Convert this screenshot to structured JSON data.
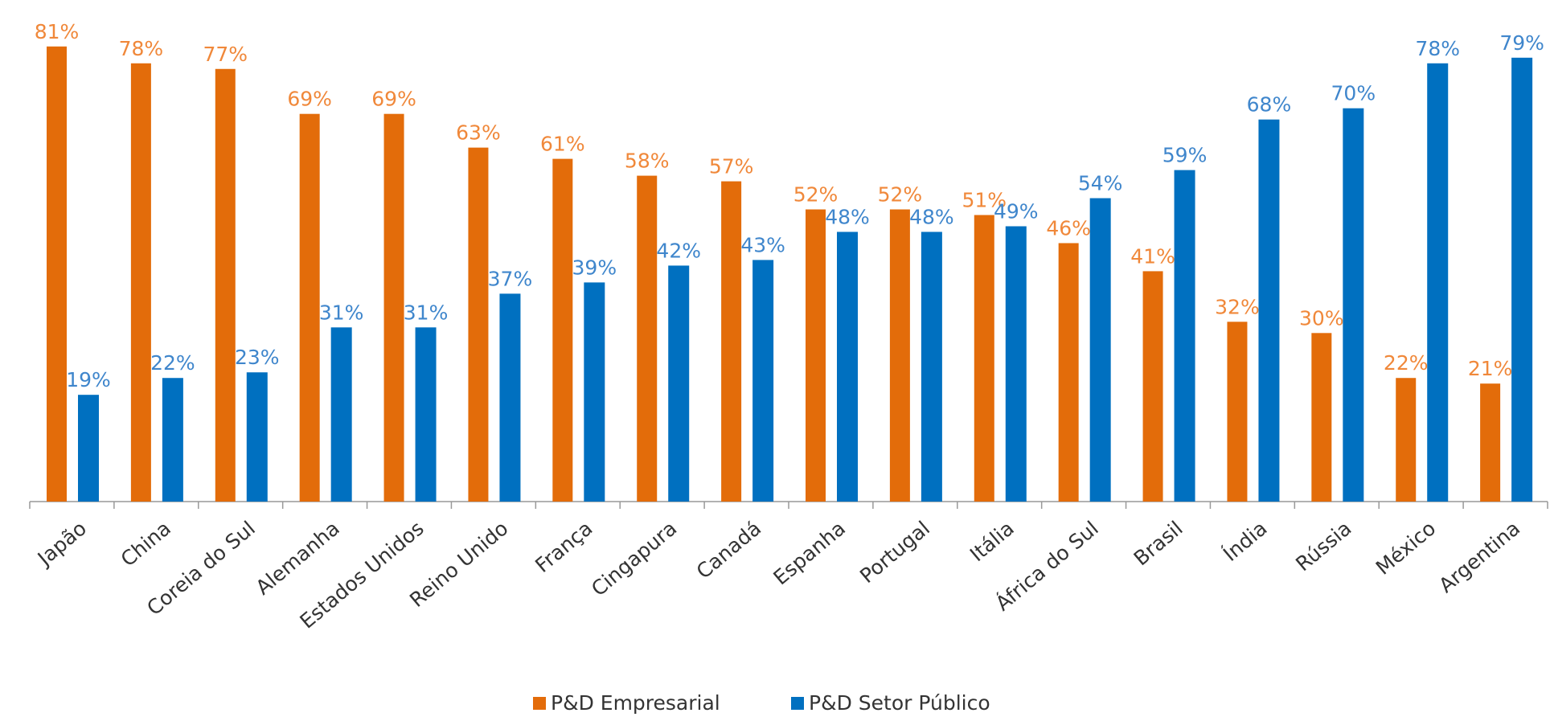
{
  "chart_data": {
    "type": "bar",
    "categories": [
      "Japão",
      "China",
      "Coreia do Sul",
      "Alemanha",
      "Estados Unidos",
      "Reino Unido",
      "França",
      "Cingapura",
      "Canadá",
      "Espanha",
      "Portugal",
      "Itália",
      "África do Sul",
      "Brasil",
      "Índia",
      "Rússia",
      "México",
      "Argentina"
    ],
    "series": [
      {
        "name": "P&D Empresarial",
        "color": "#e36c0a",
        "values": [
          81,
          78,
          77,
          69,
          69,
          63,
          61,
          58,
          57,
          52,
          52,
          51,
          46,
          41,
          32,
          30,
          22,
          21
        ],
        "value_labels": [
          "81%",
          "78%",
          "77%",
          "69%",
          "69%",
          "63%",
          "61%",
          "58%",
          "57%",
          "52%",
          "52%",
          "51%",
          "46%",
          "41%",
          "32%",
          "30%",
          "22%",
          "21%"
        ]
      },
      {
        "name": "P&D Setor Público",
        "color": "#0070c0",
        "values": [
          19,
          22,
          23,
          31,
          31,
          37,
          39,
          42,
          43,
          48,
          48,
          49,
          54,
          59,
          68,
          70,
          78,
          79
        ],
        "value_labels": [
          "19%",
          "22%",
          "23%",
          "31%",
          "31%",
          "37%",
          "39%",
          "42%",
          "43%",
          "48%",
          "48%",
          "49%",
          "54%",
          "59%",
          "68%",
          "70%",
          "78%",
          "79%"
        ]
      }
    ],
    "legend": "bottom"
  }
}
